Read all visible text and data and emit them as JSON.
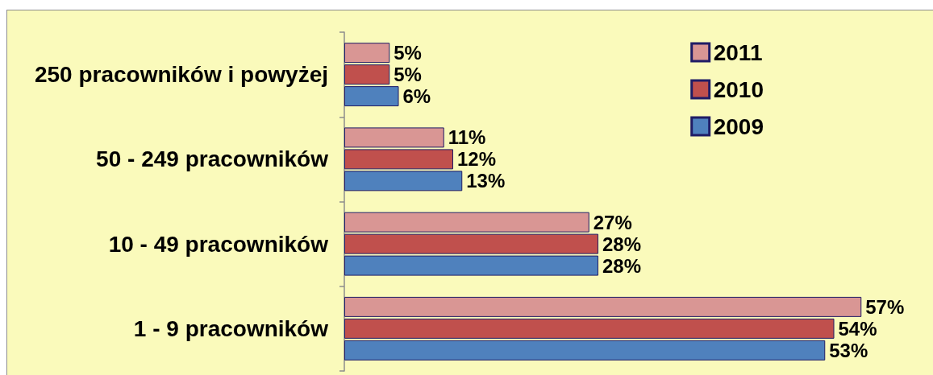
{
  "chart_data": {
    "type": "bar",
    "orientation": "horizontal",
    "categories": [
      "250 pracowników i powyżej",
      "50 - 249 pracowników",
      "10 - 49 pracowników",
      "1 - 9 pracowników"
    ],
    "series": [
      {
        "name": "2011",
        "color": "#d99694",
        "values": [
          5,
          11,
          27,
          57
        ],
        "value_labels": [
          "5%",
          "11%",
          "27%",
          "57%"
        ]
      },
      {
        "name": "2010",
        "color": "#c0504d",
        "values": [
          5,
          12,
          28,
          54
        ],
        "value_labels": [
          "5%",
          "12%",
          "28%",
          "54%"
        ]
      },
      {
        "name": "2009",
        "color": "#4f81bd",
        "values": [
          6,
          13,
          28,
          53
        ],
        "value_labels": [
          "6%",
          "13%",
          "28%",
          "53%"
        ]
      }
    ],
    "legend": "top right",
    "grid": false,
    "tick_labels": "y"
  }
}
